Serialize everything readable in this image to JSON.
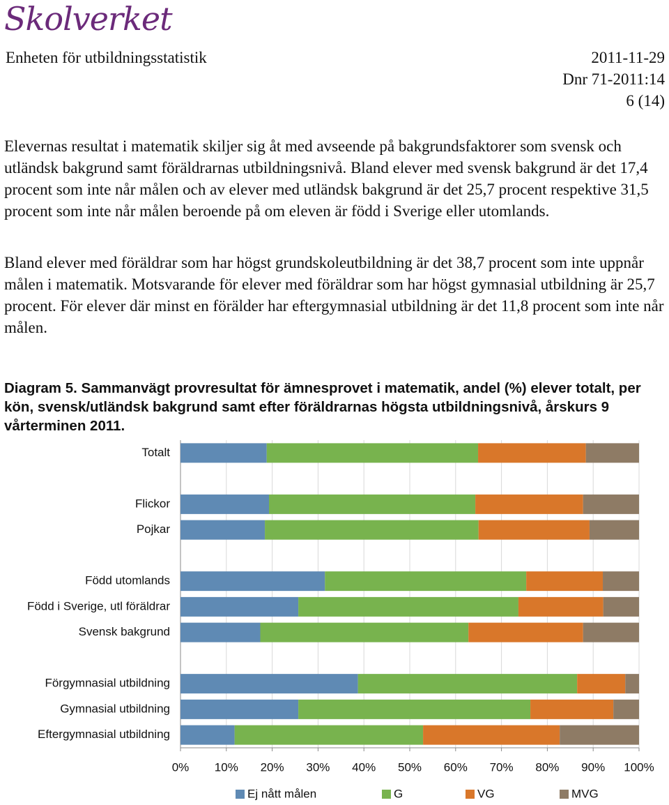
{
  "header": {
    "logo": "Skolverket",
    "unit": "Enheten för utbildningsstatistik",
    "date": "2011-11-29",
    "dnr": "Dnr 71-2011:14",
    "page": "6 (14)"
  },
  "paragraphs": [
    "Elevernas resultat i matematik skiljer sig åt med avseende på bakgrundsfaktorer som svensk och utländsk bakgrund samt föräldrarnas utbildningsnivå. Bland elever med svensk bakgrund är det 17,4 procent som inte når målen och av elever med utländsk bakgrund är det 25,7 procent respektive 31,5 procent som inte når målen beroende på om eleven är född i Sverige eller utomlands.",
    "Bland elever med föräldrar som har högst grundskoleutbildning är det 38,7 procent som inte uppnår målen i matematik. Motsvarande för elever med föräldrar som har högst gymnasial utbildning är 25,7 procent. För elever där minst en förälder har eftergymnasial utbildning är det 11,8 procent som inte når målen."
  ],
  "caption": {
    "label": "Diagram 5.",
    "text": "Sammanvägt provresultat för ämnesprovet i matematik, andel (%) elever totalt, per kön, svensk/utländsk bakgrund samt efter föräldrarnas högsta utbildningsnivå, årskurs 9 vårterminen 2011."
  },
  "chart_data": {
    "type": "stacked-barh",
    "categories": [
      "Totalt",
      null,
      "Flickor",
      "Pojkar",
      null,
      "Född utomlands",
      "Född i Sverige, utl föräldrar",
      "Svensk bakgrund",
      null,
      "Förgymnasial utbildning",
      "Gymnasial utbildning",
      "Eftergymnasial utbildning"
    ],
    "series": [
      {
        "name": "Ej nått målen",
        "color": "#5f8ab4",
        "values": [
          18.8,
          null,
          19.3,
          18.4,
          null,
          31.5,
          25.7,
          17.4,
          null,
          38.7,
          25.7,
          11.8
        ]
      },
      {
        "name": "G",
        "color": "#78b34e",
        "values": [
          46.1,
          null,
          45.0,
          46.6,
          null,
          43.9,
          48.0,
          45.4,
          null,
          47.8,
          50.6,
          41.1
        ]
      },
      {
        "name": "VG",
        "color": "#d9772a",
        "values": [
          23.5,
          null,
          23.5,
          24.2,
          null,
          16.7,
          18.5,
          25.0,
          null,
          10.5,
          18.1,
          29.8
        ]
      },
      {
        "name": "MVG",
        "color": "#8e7b65",
        "values": [
          11.6,
          null,
          12.2,
          10.8,
          null,
          7.9,
          7.8,
          12.2,
          null,
          3.0,
          5.6,
          17.3
        ]
      }
    ],
    "xlim": [
      0,
      100
    ],
    "xticks": [
      {
        "value": 0,
        "label": "0%"
      },
      {
        "value": 10,
        "label": "10%"
      },
      {
        "value": 20,
        "label": "20%"
      },
      {
        "value": 30,
        "label": "30%"
      },
      {
        "value": 40,
        "label": "40%"
      },
      {
        "value": 50,
        "label": "50%"
      },
      {
        "value": 60,
        "label": "60%"
      },
      {
        "value": 70,
        "label": "70%"
      },
      {
        "value": 80,
        "label": "80%"
      },
      {
        "value": 90,
        "label": "90%"
      },
      {
        "value": 100,
        "label": "100%"
      }
    ],
    "grid": true,
    "legend": "bottom"
  }
}
